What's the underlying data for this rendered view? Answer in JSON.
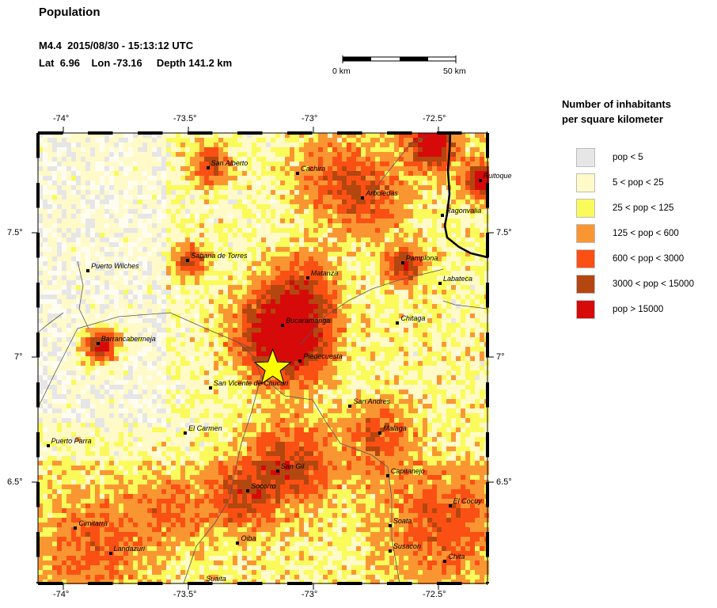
{
  "title": "Population",
  "event": {
    "line1": "M4.4  2015/08/30 - 15:13:12 UTC",
    "line2": "Lat  6.96    Lon -73.16     Depth 141.2 km"
  },
  "scale_bar": {
    "left_label": "0 km",
    "right_label": "50 km"
  },
  "legend": {
    "title_line1": "Number of inhabitants",
    "title_line2": "per square kilometer",
    "items": [
      {
        "label": "pop < 5",
        "color": "#e6e6e6"
      },
      {
        "label": "5 < pop < 25",
        "color": "#fffac8"
      },
      {
        "label": "25 < pop < 125",
        "color": "#fafa5a"
      },
      {
        "label": "125 < pop < 600",
        "color": "#fa9632"
      },
      {
        "label": "600 < pop < 3000",
        "color": "#fa5014"
      },
      {
        "label": "3000 < pop < 15000",
        "color": "#b4460f"
      },
      {
        "label": "pop > 15000",
        "color": "#d70a0a"
      }
    ]
  },
  "axes": {
    "lon_ticks": [
      "-74°",
      "-73.5°",
      "-73°",
      "-72.5°"
    ],
    "lat_ticks": [
      "7.5°",
      "7°",
      "6.5°"
    ],
    "lon_range": [
      -74.1,
      -72.3
    ],
    "lat_range": [
      6.1,
      7.9
    ]
  },
  "epicenter": {
    "lon": -73.16,
    "lat": 6.96,
    "color": "#ffff00"
  },
  "cities": [
    {
      "name": "San Alberto",
      "lon": -73.42,
      "lat": 7.76
    },
    {
      "name": "Cachira",
      "lon": -73.06,
      "lat": 7.74
    },
    {
      "name": "Arboledas",
      "lon": -72.8,
      "lat": 7.64
    },
    {
      "name": "Ragonvalia",
      "lon": -72.48,
      "lat": 7.57
    },
    {
      "name": "Ruitoque",
      "lon": -72.33,
      "lat": 7.71
    },
    {
      "name": "Puerto Wilches",
      "lon": -73.9,
      "lat": 7.35
    },
    {
      "name": "Sabana de Torres",
      "lon": -73.5,
      "lat": 7.39
    },
    {
      "name": "Matanza",
      "lon": -73.02,
      "lat": 7.32
    },
    {
      "name": "Pamplona",
      "lon": -72.64,
      "lat": 7.38
    },
    {
      "name": "Labateca",
      "lon": -72.49,
      "lat": 7.3
    },
    {
      "name": "Bucaramanga",
      "lon": -73.12,
      "lat": 7.13
    },
    {
      "name": "Chitaga",
      "lon": -72.66,
      "lat": 7.14
    },
    {
      "name": "Barrancabermeja",
      "lon": -73.86,
      "lat": 7.06
    },
    {
      "name": "Piedecuesta",
      "lon": -73.05,
      "lat": 6.99
    },
    {
      "name": "San Vicente de Chucuri",
      "lon": -73.41,
      "lat": 6.88
    },
    {
      "name": "San Andres",
      "lon": -72.85,
      "lat": 6.81
    },
    {
      "name": "El Carmen",
      "lon": -73.51,
      "lat": 6.7
    },
    {
      "name": "Malaga",
      "lon": -72.73,
      "lat": 6.7
    },
    {
      "name": "Puerto Parra",
      "lon": -74.06,
      "lat": 6.65
    },
    {
      "name": "San Gil",
      "lon": -73.14,
      "lat": 6.55
    },
    {
      "name": "Capitanejo",
      "lon": -72.7,
      "lat": 6.53
    },
    {
      "name": "Socorro",
      "lon": -73.26,
      "lat": 6.47
    },
    {
      "name": "El Cocuy",
      "lon": -72.45,
      "lat": 6.41
    },
    {
      "name": "Cimitarra",
      "lon": -73.95,
      "lat": 6.32
    },
    {
      "name": "Soata",
      "lon": -72.69,
      "lat": 6.33
    },
    {
      "name": "Oiba",
      "lon": -73.3,
      "lat": 6.26
    },
    {
      "name": "Landazuri",
      "lon": -73.81,
      "lat": 6.22
    },
    {
      "name": "Susacon",
      "lon": -72.69,
      "lat": 6.23
    },
    {
      "name": "Chita",
      "lon": -72.47,
      "lat": 6.19
    },
    {
      "name": "Suaita",
      "lon": -73.44,
      "lat": 6.1
    }
  ]
}
